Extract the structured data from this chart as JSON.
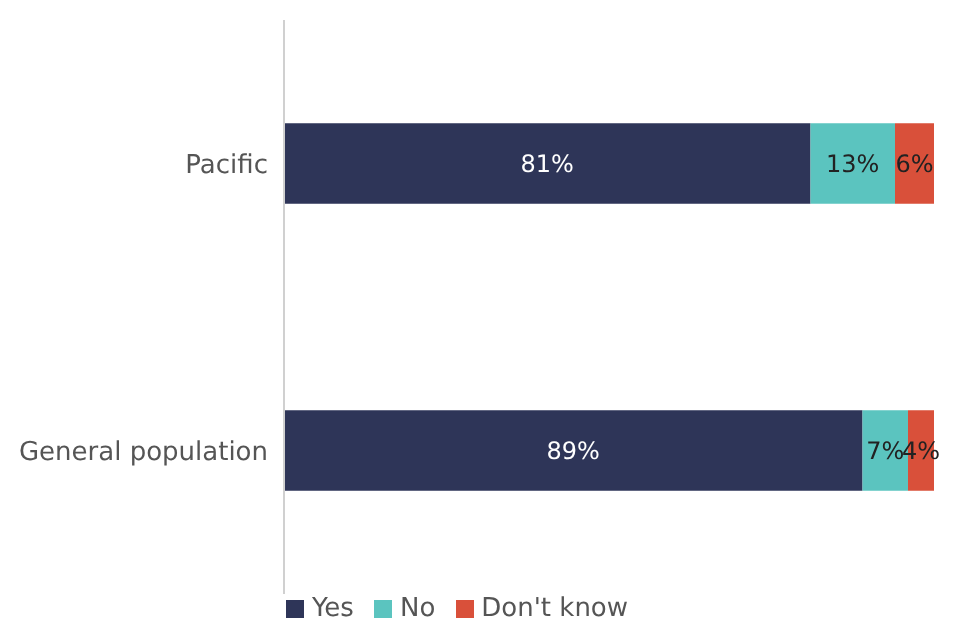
{
  "chart_data": {
    "type": "bar",
    "orientation": "horizontal",
    "stacked": true,
    "categories": [
      "Pacific",
      "General population"
    ],
    "series": [
      {
        "name": "Yes",
        "color": "#2e3558",
        "values": [
          81,
          89
        ],
        "value_labels": [
          "81%",
          "89%"
        ]
      },
      {
        "name": "No",
        "color": "#5bc4bf",
        "values": [
          13,
          7
        ],
        "value_labels": [
          "13%",
          "7%"
        ]
      },
      {
        "name": "Don't know",
        "color": "#d9503a",
        "values": [
          6,
          4
        ],
        "value_labels": [
          "6%",
          "4%"
        ]
      }
    ],
    "legend": "bottom",
    "grid": false
  }
}
